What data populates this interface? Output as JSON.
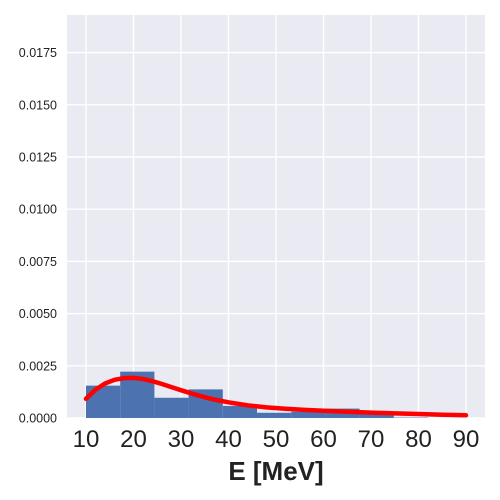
{
  "chart_data": {
    "type": "bar",
    "title": "",
    "xlabel": "E [MeV]",
    "ylabel": "",
    "xlim": [
      6,
      94
    ],
    "ylim": [
      0,
      0.0193
    ],
    "grid": true,
    "x_ticks": [
      10,
      20,
      30,
      40,
      50,
      60,
      70,
      80,
      90
    ],
    "y_ticks": [
      0.0,
      0.0025,
      0.005,
      0.0075,
      0.01,
      0.0125,
      0.015,
      0.0175
    ],
    "y_tick_labels": [
      "0.0000",
      "0.0025",
      "0.0050",
      "0.0075",
      "0.0100",
      "0.0125",
      "0.0150",
      "0.0175"
    ],
    "colors": {
      "background": "#eaeaf2",
      "bars": "#4c72b0",
      "curve": "#ff0000",
      "grid": "#ffffff"
    },
    "histogram": {
      "name": "",
      "bins": [
        {
          "x0": 10.0,
          "x1": 17.2,
          "value": 0.00155
        },
        {
          "x0": 17.2,
          "x1": 24.4,
          "value": 0.00222
        },
        {
          "x0": 24.4,
          "x1": 31.6,
          "value": 0.00097
        },
        {
          "x0": 31.6,
          "x1": 38.8,
          "value": 0.00137
        },
        {
          "x0": 38.8,
          "x1": 46.0,
          "value": 0.00058
        },
        {
          "x0": 46.0,
          "x1": 53.2,
          "value": 0.00025
        },
        {
          "x0": 53.2,
          "x1": 60.4,
          "value": 0.0003
        },
        {
          "x0": 60.4,
          "x1": 67.6,
          "value": 0.00045
        },
        {
          "x0": 67.6,
          "x1": 74.8,
          "value": 0.00022
        },
        {
          "x0": 74.8,
          "x1": 82.0,
          "value": 2e-05
        }
      ]
    },
    "curve": {
      "name": "",
      "x": [
        10,
        12,
        14,
        16,
        18,
        20,
        22,
        24,
        26,
        28,
        30,
        32,
        34,
        36,
        38,
        40,
        44,
        48,
        52,
        56,
        60,
        65,
        70,
        75,
        80,
        85,
        90
      ],
      "y": [
        0.00092,
        0.00135,
        0.00165,
        0.00183,
        0.00191,
        0.00192,
        0.00187,
        0.00176,
        0.00163,
        0.00148,
        0.00133,
        0.00119,
        0.00106,
        0.00094,
        0.00084,
        0.00075,
        0.00061,
        0.00051,
        0.00044,
        0.00039,
        0.00035,
        0.0003,
        0.00026,
        0.00022,
        0.00019,
        0.00016,
        0.00013
      ]
    }
  }
}
